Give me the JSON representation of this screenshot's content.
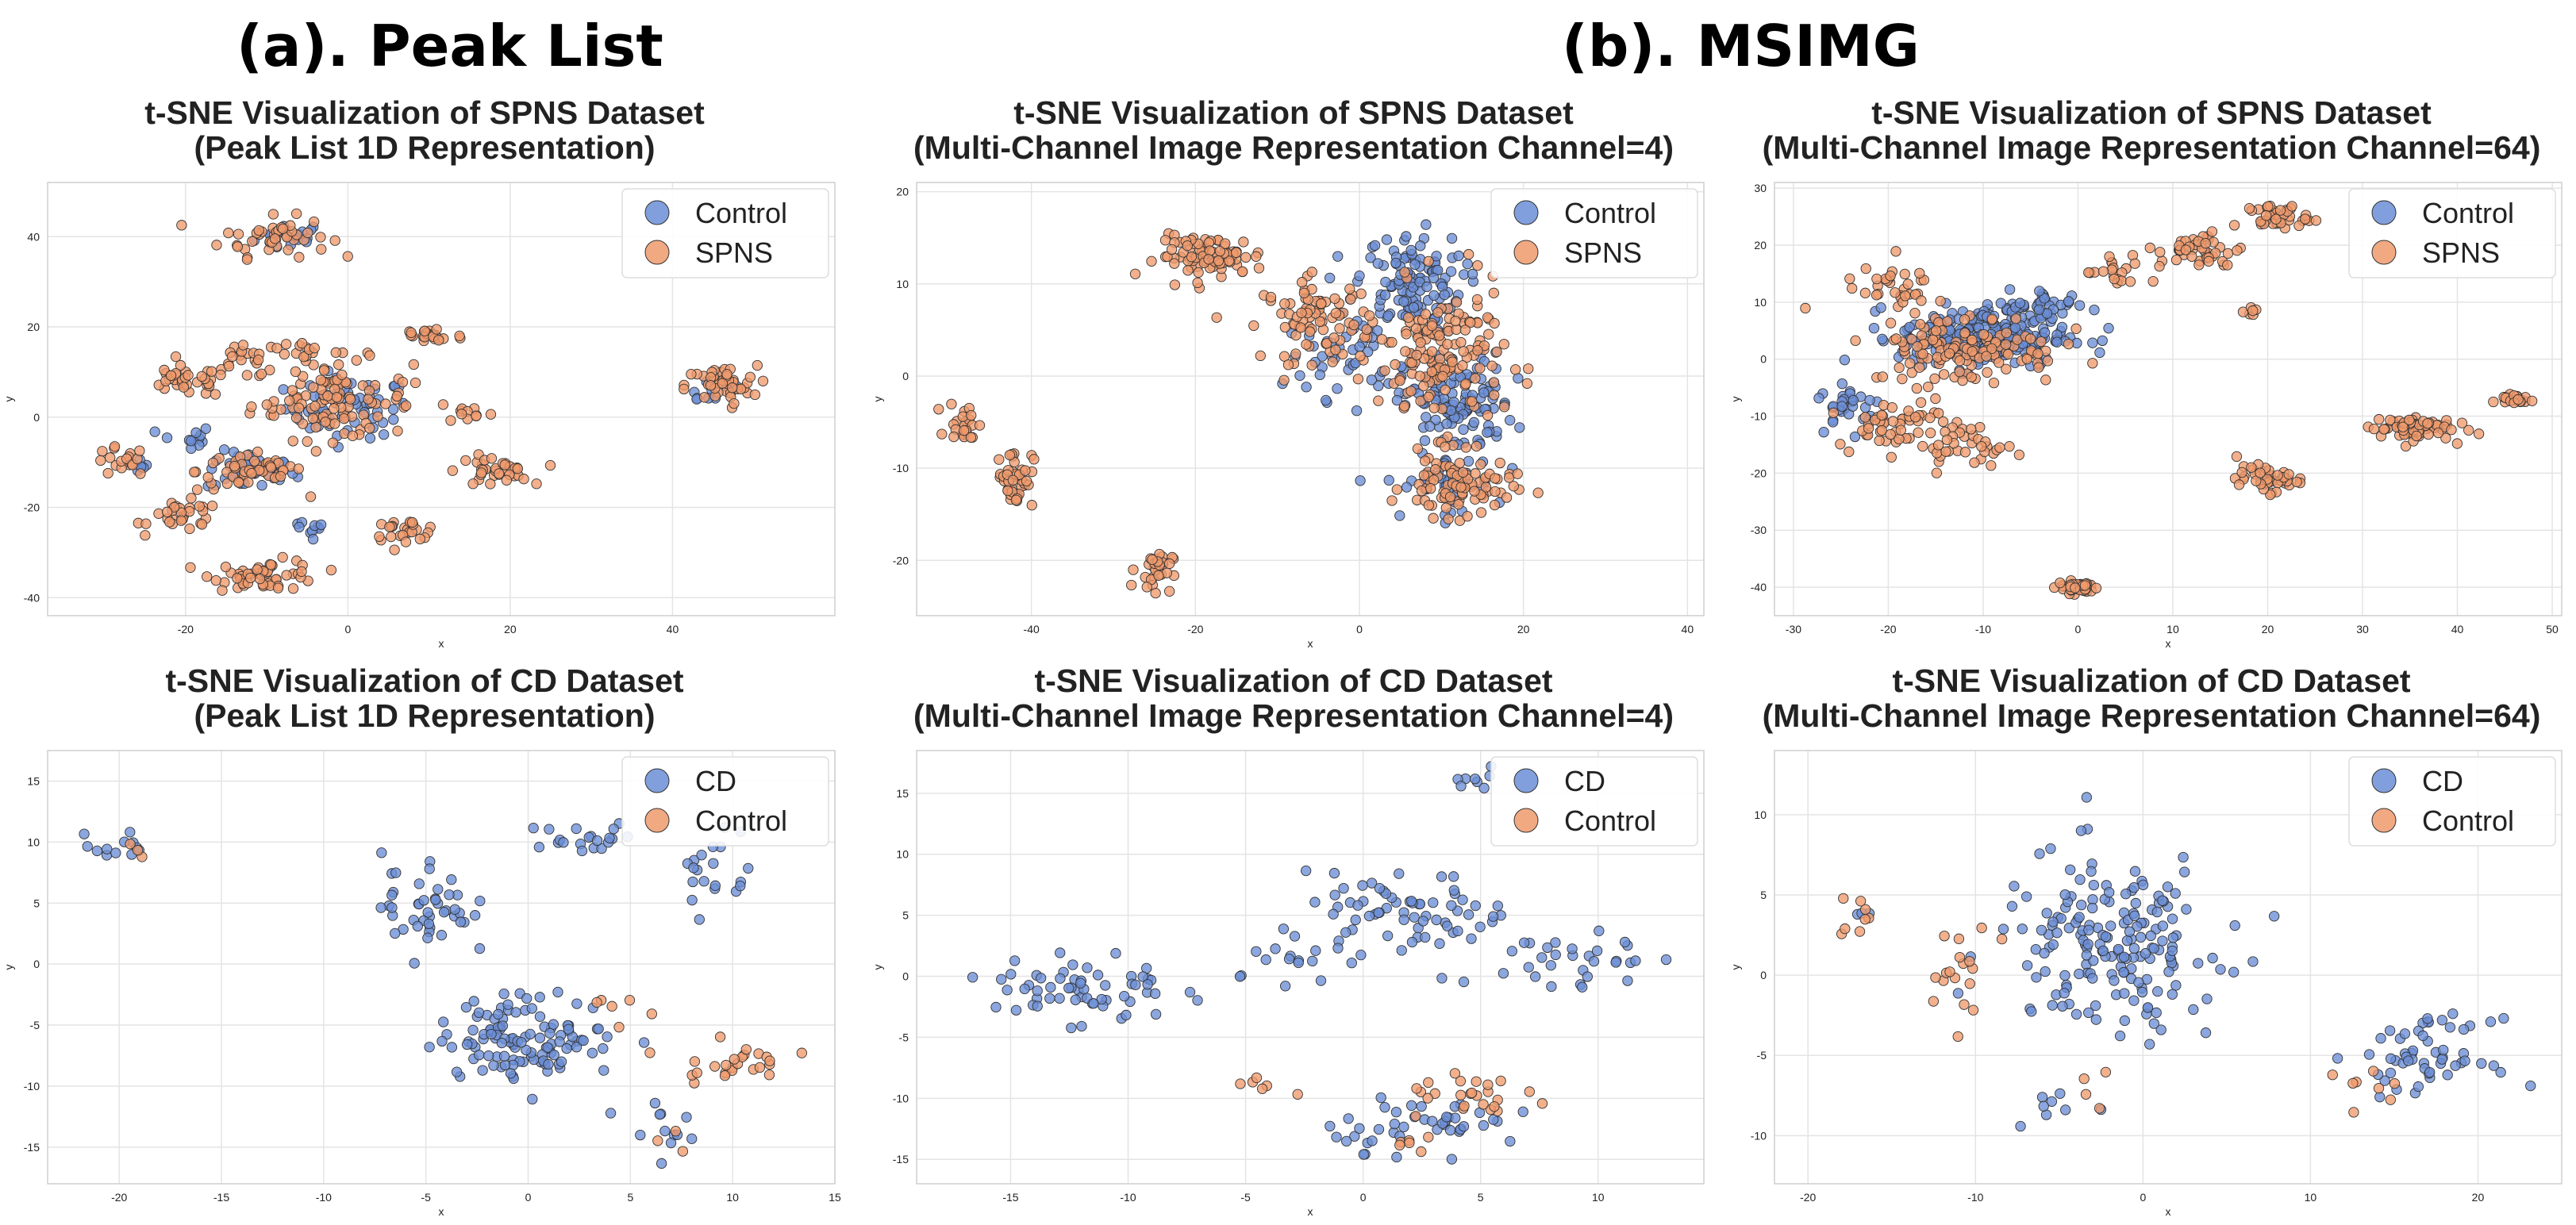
{
  "sections": [
    {
      "label": "(a). Peak List"
    },
    {
      "label": "(b). MSIMG"
    }
  ],
  "colors": {
    "control_blue": "#6b8ed6",
    "spns_orange": "#ef9a6c",
    "edge": "#333333",
    "grid": "#e4e4e4"
  },
  "chart_data": [
    {
      "type": "scatter",
      "title": "t-SNE Visualization of SPNS Dataset",
      "subtitle": "(Peak List 1D Representation)",
      "xlabel": "x",
      "ylabel": "y",
      "xlim": [
        -37,
        60
      ],
      "ylim": [
        -44,
        52
      ],
      "xticks": [
        -20,
        0,
        20,
        40
      ],
      "yticks": [
        -40,
        -20,
        0,
        20,
        40
      ],
      "grid": true,
      "legend": "top-right",
      "series": [
        {
          "name": "Control",
          "color": "#6b8ed6",
          "clusters": [
            [
              -7,
              40,
              4,
              3,
              18
            ],
            [
              0,
              2,
              7,
              6,
              60
            ],
            [
              -12,
              -12,
              5,
              4,
              40
            ],
            [
              -20,
              -5,
              3,
              3,
              12
            ],
            [
              -26,
              -10,
              2,
              2,
              6
            ],
            [
              45,
              6,
              4,
              3,
              12
            ],
            [
              -4,
              -25,
              4,
              3,
              10
            ]
          ]
        },
        {
          "name": "SPNS",
          "color": "#ef9a6c",
          "clusters": [
            [
              -9,
              40,
              6,
              4,
              45
            ],
            [
              -2,
              4,
              9,
              8,
              110
            ],
            [
              -12,
              -12,
              6,
              4,
              50
            ],
            [
              -20,
              8,
              5,
              3,
              35
            ],
            [
              -28,
              -10,
              3,
              3,
              18
            ],
            [
              -20,
              -22,
              4,
              3,
              30
            ],
            [
              -10,
              -35,
              6,
              3,
              55
            ],
            [
              7,
              -25,
              4,
              2,
              25
            ],
            [
              18,
              -12,
              4,
              3,
              35
            ],
            [
              46,
              7,
              4,
              4,
              45
            ],
            [
              10,
              18,
              4,
              2,
              25
            ],
            [
              -5,
              15,
              3,
              2,
              12
            ],
            [
              15,
              1,
              3,
              2,
              10
            ],
            [
              -12,
              14,
              4,
              3,
              18
            ]
          ]
        }
      ]
    },
    {
      "type": "scatter",
      "title": "t-SNE Visualization of SPNS Dataset",
      "subtitle": "(Multi-Channel Image Representation Channel=4)",
      "xlabel": "x",
      "ylabel": "y",
      "xlim": [
        -54,
        42
      ],
      "ylim": [
        -26,
        21
      ],
      "xticks": [
        -40,
        -20,
        0,
        20,
        40
      ],
      "yticks": [
        -20,
        -10,
        0,
        10,
        20
      ],
      "grid": true,
      "legend": "top-right",
      "series": [
        {
          "name": "Control",
          "color": "#6b8ed6",
          "clusters": [
            [
              6,
              10,
              6,
              5,
              120
            ],
            [
              12,
              -3,
              6,
              5,
              120
            ],
            [
              -2,
              2,
              6,
              4,
              40
            ],
            [
              10,
              -12,
              6,
              3,
              40
            ]
          ]
        },
        {
          "name": "SPNS",
          "color": "#ef9a6c",
          "clusters": [
            [
              -18,
              13,
              6,
              2,
              85
            ],
            [
              -5,
              6,
              6,
              4,
              85
            ],
            [
              10,
              2,
              7,
              7,
              150
            ],
            [
              12,
              -12,
              6,
              3,
              90
            ],
            [
              -48,
              -5,
              2,
              2,
              25
            ],
            [
              -42,
              -11,
              2,
              3,
              45
            ],
            [
              -25,
              -21,
              2,
              2,
              30
            ]
          ]
        }
      ]
    },
    {
      "type": "scatter",
      "title": "t-SNE Visualization of SPNS Dataset",
      "subtitle": "(Multi-Channel Image Representation Channel=64)",
      "xlabel": "x",
      "ylabel": "y",
      "xlim": [
        -32,
        51
      ],
      "ylim": [
        -45,
        31
      ],
      "xticks": [
        -30,
        -20,
        -10,
        0,
        10,
        20,
        30,
        40,
        50
      ],
      "yticks": [
        -40,
        -30,
        -20,
        -10,
        0,
        10,
        20,
        30
      ],
      "grid": true,
      "legend": "top-right",
      "series": [
        {
          "name": "Control",
          "color": "#6b8ed6",
          "clusters": [
            [
              -10,
              4,
              8,
              5,
              230
            ],
            [
              -24,
              -8,
              3,
              4,
              30
            ],
            [
              -3,
              9,
              4,
              3,
              35
            ]
          ]
        },
        {
          "name": "SPNS",
          "color": "#ef9a6c",
          "clusters": [
            [
              -12,
              2,
              9,
              6,
              130
            ],
            [
              -20,
              -11,
              5,
              4,
              45
            ],
            [
              -12,
              -15,
              5,
              3,
              40
            ],
            [
              13,
              19,
              4,
              3,
              45
            ],
            [
              21,
              25,
              3,
              2,
              40
            ],
            [
              20,
              -21,
              3,
              2,
              45
            ],
            [
              35,
              -12,
              4,
              2,
              70
            ],
            [
              46,
              -7,
              2,
              1,
              20
            ],
            [
              0,
              -40,
              2,
              1,
              40
            ],
            [
              18,
              8,
              1,
              1,
              6
            ],
            [
              -20,
              13,
              4,
              3,
              30
            ],
            [
              4,
              15,
              3,
              3,
              20
            ]
          ]
        }
      ]
    },
    {
      "type": "scatter",
      "title": "t-SNE Visualization of CD Dataset",
      "subtitle": "(Peak List 1D Representation)",
      "xlabel": "x",
      "ylabel": "y",
      "xlim": [
        -23.5,
        15
      ],
      "ylim": [
        -18,
        17.5
      ],
      "xticks": [
        -20,
        -15,
        -10,
        -5,
        0,
        5,
        10,
        15
      ],
      "yticks": [
        -15,
        -10,
        -5,
        0,
        5,
        10,
        15
      ],
      "grid": true,
      "legend": "top-right",
      "series": [
        {
          "name": "CD",
          "color": "#6b8ed6",
          "clusters": [
            [
              -20,
              9.5,
              1.5,
              1,
              12
            ],
            [
              -5,
              5,
              2,
              4,
              45
            ],
            [
              0,
              -6,
              4,
              3,
              120
            ],
            [
              3,
              10,
              2.5,
              1.5,
              20
            ],
            [
              9,
              8,
              1.5,
              4,
              20
            ],
            [
              6,
              -13,
              1.5,
              2,
              12
            ]
          ]
        },
        {
          "name": "Control",
          "color": "#ef9a6c",
          "clusters": [
            [
              10,
              -8,
              2.5,
              1.5,
              25
            ],
            [
              -19.5,
              9.5,
              0.7,
              0.7,
              3
            ],
            [
              4,
              -4,
              1.5,
              2,
              6
            ],
            [
              7,
              -14.5,
              1,
              1,
              3
            ]
          ]
        }
      ]
    },
    {
      "type": "scatter",
      "title": "t-SNE Visualization of CD Dataset",
      "subtitle": "(Multi-Channel Image Representation Channel=4)",
      "xlabel": "x",
      "ylabel": "y",
      "xlim": [
        -19,
        14.5
      ],
      "ylim": [
        -17,
        18.5
      ],
      "xticks": [
        -15,
        -10,
        -5,
        0,
        5,
        10
      ],
      "yticks": [
        -15,
        -10,
        -5,
        0,
        5,
        10,
        15
      ],
      "grid": true,
      "legend": "top-right",
      "series": [
        {
          "name": "CD",
          "color": "#6b8ed6",
          "clusters": [
            [
              -12,
              -1,
              3.5,
              3,
              60
            ],
            [
              2,
              5,
              4,
              3,
              70
            ],
            [
              9,
              1,
              3,
              3,
              30
            ],
            [
              3,
              -12,
              4,
              2,
              45
            ],
            [
              5,
              16,
              1,
              0.8,
              8
            ],
            [
              -3,
              1,
              2,
              2,
              15
            ]
          ]
        },
        {
          "name": "Control",
          "color": "#ef9a6c",
          "clusters": [
            [
              5,
              -10,
              3,
              1.5,
              25
            ],
            [
              -4,
              -9,
              1.5,
              1,
              6
            ],
            [
              2,
              -14,
              1.5,
              1,
              6
            ]
          ]
        }
      ]
    },
    {
      "type": "scatter",
      "title": "t-SNE Visualization of CD Dataset",
      "subtitle": "(Multi-Channel Image Representation Channel=64)",
      "xlabel": "x",
      "ylabel": "y",
      "xlim": [
        -22,
        25
      ],
      "ylim": [
        -13,
        14
      ],
      "xticks": [
        -20,
        -10,
        0,
        10,
        20
      ],
      "yticks": [
        -10,
        -5,
        0,
        5,
        10
      ],
      "grid": true,
      "legend": "top-right",
      "series": [
        {
          "name": "CD",
          "color": "#6b8ed6",
          "clusters": [
            [
              -2,
              2,
              6,
              5,
              180
            ],
            [
              17,
              -5,
              3.5,
              2,
              55
            ],
            [
              -5,
              -8,
              2,
              1.5,
              8
            ],
            [
              -17,
              4,
              1,
              1,
              3
            ]
          ]
        },
        {
          "name": "Control",
          "color": "#ef9a6c",
          "clusters": [
            [
              -17,
              3.5,
              1,
              1.2,
              8
            ],
            [
              -11,
              0,
              2,
              3,
              18
            ],
            [
              14,
              -7,
              2,
              2,
              8
            ],
            [
              -3,
              -7,
              1.5,
              1,
              4
            ]
          ]
        }
      ]
    }
  ]
}
